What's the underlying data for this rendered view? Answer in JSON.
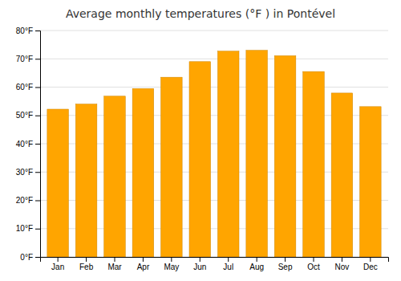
{
  "chart_data": {
    "type": "bar",
    "title": "Average monthly temperatures (°F ) in Pontével",
    "categories": [
      "Jan",
      "Feb",
      "Mar",
      "Apr",
      "May",
      "Jun",
      "Jul",
      "Aug",
      "Sep",
      "Oct",
      "Nov",
      "Dec"
    ],
    "values": [
      52.2,
      54.0,
      56.8,
      59.5,
      63.5,
      69.0,
      72.7,
      73.0,
      71.1,
      65.5,
      57.9,
      53.1
    ],
    "color": "#FFA500",
    "ylim": [
      0,
      80
    ],
    "yticks": [
      {
        "value": 0,
        "label": "0°F"
      },
      {
        "value": 10,
        "label": "10°F"
      },
      {
        "value": 20,
        "label": "20°F"
      },
      {
        "value": 30,
        "label": "30°F"
      },
      {
        "value": 40,
        "label": "40°F"
      },
      {
        "value": 50,
        "label": "50°F"
      },
      {
        "value": 60,
        "label": "60°F"
      },
      {
        "value": 70,
        "label": "70°F"
      },
      {
        "value": 80,
        "label": "80°F"
      }
    ],
    "grid": true
  }
}
